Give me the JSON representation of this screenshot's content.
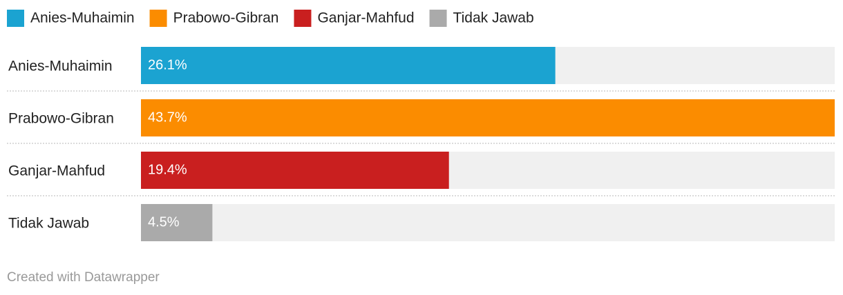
{
  "chart_data": {
    "type": "bar",
    "categories": [
      "Anies-Muhaimin",
      "Prabowo-Gibran",
      "Ganjar-Mahfud",
      "Tidak Jawab"
    ],
    "values": [
      26.1,
      43.7,
      19.4,
      4.5
    ],
    "value_labels": [
      "26.1%",
      "43.7%",
      "19.4%",
      "4.5%"
    ],
    "colors": [
      "#1ba3d1",
      "#fb8c00",
      "#c91f1f",
      "#aaaaaa"
    ],
    "xlim": [
      0,
      43.7
    ],
    "credit": "Created with Datawrapper"
  }
}
